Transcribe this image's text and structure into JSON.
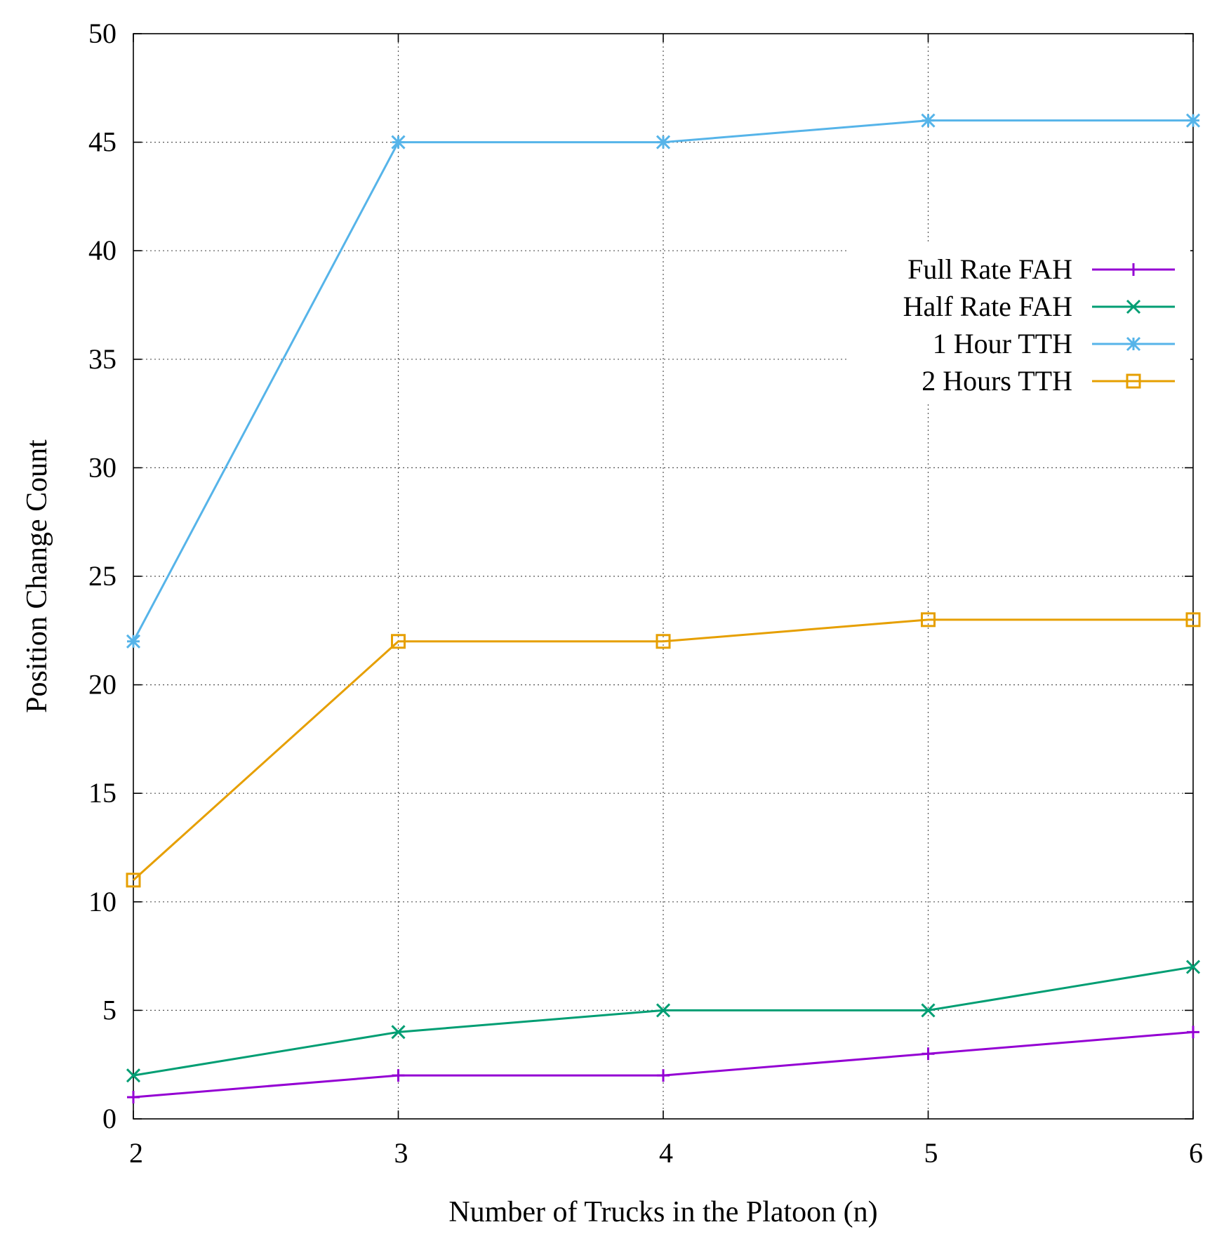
{
  "chart_data": {
    "type": "line",
    "title": "",
    "xlabel": "Number of Trucks in the Platoon (n)",
    "ylabel": "Position Change Count",
    "x": [
      2,
      3,
      4,
      5,
      6
    ],
    "xlim": [
      2,
      6
    ],
    "ylim": [
      0,
      50
    ],
    "xticks": [
      "2",
      "3",
      "4",
      "5",
      "6"
    ],
    "yticks": [
      "0",
      "5",
      "10",
      "15",
      "20",
      "25",
      "30",
      "35",
      "40",
      "45",
      "50"
    ],
    "grid": true,
    "legend_position": "top-right",
    "series": [
      {
        "name": "Full Rate FAH",
        "values": [
          1,
          2,
          2,
          3,
          4
        ],
        "color": "#9400d3",
        "marker": "plus"
      },
      {
        "name": "Half Rate FAH",
        "values": [
          2,
          4,
          5,
          5,
          7
        ],
        "color": "#009e73",
        "marker": "cross"
      },
      {
        "name": "1 Hour TTH",
        "values": [
          22,
          45,
          45,
          46,
          46
        ],
        "color": "#56b4e9",
        "marker": "star"
      },
      {
        "name": "2 Hours TTH",
        "values": [
          11,
          22,
          22,
          23,
          23
        ],
        "color": "#e69f00",
        "marker": "square"
      }
    ]
  }
}
